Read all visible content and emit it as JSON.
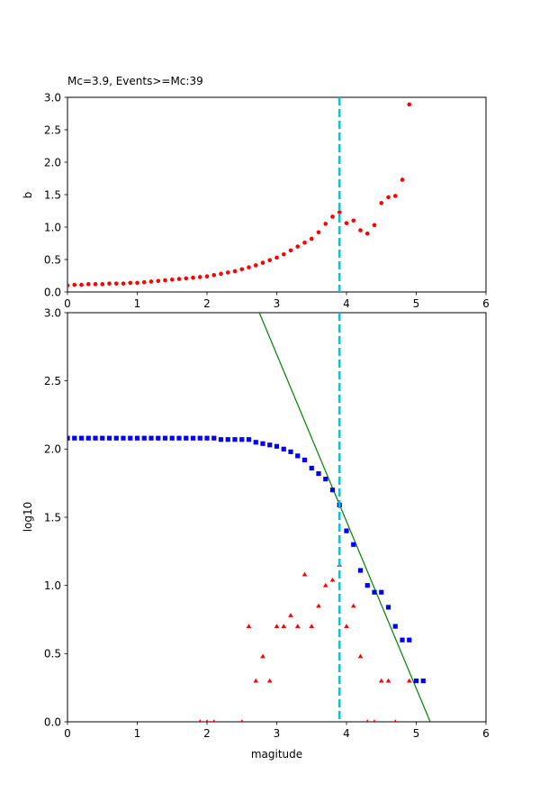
{
  "chart_data": [
    {
      "type": "scatter",
      "title": "Mc=3.9, Events>=Mc:39",
      "xlabel": "",
      "ylabel": "b",
      "xlim": [
        0,
        6
      ],
      "ylim": [
        0,
        3.0
      ],
      "xticks": [
        "0",
        "1",
        "2",
        "3",
        "4",
        "5",
        "6"
      ],
      "yticks": [
        "0.0",
        "0.5",
        "1.0",
        "1.5",
        "2.0",
        "2.5",
        "3.0"
      ],
      "grid": false,
      "vline": {
        "x": 3.9,
        "color": "#17becf",
        "style": "dashed"
      },
      "series": [
        {
          "marker": "circle",
          "color": "#ff0000",
          "x": [
            0.0,
            0.1,
            0.2,
            0.3,
            0.4,
            0.5,
            0.6,
            0.7,
            0.8,
            0.9,
            1.0,
            1.1,
            1.2,
            1.3,
            1.4,
            1.5,
            1.6,
            1.7,
            1.8,
            1.9,
            2.0,
            2.1,
            2.2,
            2.3,
            2.4,
            2.5,
            2.6,
            2.7,
            2.8,
            2.9,
            3.0,
            3.1,
            3.2,
            3.3,
            3.4,
            3.5,
            3.6,
            3.7,
            3.8,
            3.9,
            4.0,
            4.1,
            4.2,
            4.3,
            4.4,
            4.5,
            4.6,
            4.7,
            4.8,
            4.9
          ],
          "y": [
            0.1,
            0.11,
            0.11,
            0.12,
            0.12,
            0.12,
            0.13,
            0.13,
            0.13,
            0.14,
            0.14,
            0.15,
            0.16,
            0.17,
            0.18,
            0.19,
            0.2,
            0.21,
            0.22,
            0.23,
            0.24,
            0.26,
            0.28,
            0.3,
            0.32,
            0.35,
            0.38,
            0.41,
            0.45,
            0.49,
            0.53,
            0.58,
            0.64,
            0.7,
            0.76,
            0.82,
            0.92,
            1.05,
            1.16,
            1.23,
            1.06,
            1.1,
            0.95,
            0.9,
            1.03,
            1.37,
            1.46,
            1.48,
            1.73,
            2.89
          ]
        }
      ]
    },
    {
      "type": "scatter",
      "title": "",
      "xlabel": "magitude",
      "ylabel": "log10",
      "xlim": [
        0,
        6
      ],
      "ylim": [
        0,
        3.0
      ],
      "xticks": [
        "0",
        "1",
        "2",
        "3",
        "4",
        "5",
        "6"
      ],
      "yticks": [
        "0.0",
        "0.5",
        "1.0",
        "1.5",
        "2.0",
        "2.5",
        "3.0"
      ],
      "grid": false,
      "vline": {
        "x": 3.9,
        "color": "#17becf",
        "style": "dashed"
      },
      "fit_line": {
        "color": "#008000",
        "points": [
          [
            2.75,
            3.0
          ],
          [
            5.2,
            0.0
          ]
        ]
      },
      "series": [
        {
          "marker": "square",
          "color": "#0000ff",
          "x": [
            0.0,
            0.1,
            0.2,
            0.3,
            0.4,
            0.5,
            0.6,
            0.7,
            0.8,
            0.9,
            1.0,
            1.1,
            1.2,
            1.3,
            1.4,
            1.5,
            1.6,
            1.7,
            1.8,
            1.9,
            2.0,
            2.1,
            2.2,
            2.3,
            2.4,
            2.5,
            2.6,
            2.7,
            2.8,
            2.9,
            3.0,
            3.1,
            3.2,
            3.3,
            3.4,
            3.5,
            3.6,
            3.7,
            3.8,
            3.9,
            4.0,
            4.1,
            4.2,
            4.3,
            4.4,
            4.5,
            4.6,
            4.7,
            4.8,
            4.9,
            5.0,
            5.1
          ],
          "y": [
            2.08,
            2.08,
            2.08,
            2.08,
            2.08,
            2.08,
            2.08,
            2.08,
            2.08,
            2.08,
            2.08,
            2.08,
            2.08,
            2.08,
            2.08,
            2.08,
            2.08,
            2.08,
            2.08,
            2.08,
            2.08,
            2.08,
            2.07,
            2.07,
            2.07,
            2.07,
            2.07,
            2.05,
            2.04,
            2.03,
            2.02,
            2.0,
            1.98,
            1.95,
            1.92,
            1.86,
            1.82,
            1.78,
            1.7,
            1.59,
            1.4,
            1.3,
            1.11,
            1.0,
            0.95,
            0.95,
            0.84,
            0.7,
            0.6,
            0.6,
            0.3,
            0.3
          ]
        },
        {
          "marker": "triangle",
          "color": "#ff0000",
          "x": [
            1.9,
            2.0,
            2.1,
            2.5,
            2.6,
            2.7,
            2.8,
            2.9,
            3.0,
            3.1,
            3.2,
            3.3,
            3.4,
            3.5,
            3.6,
            3.7,
            3.8,
            3.9,
            4.0,
            4.1,
            4.2,
            4.3,
            4.4,
            4.5,
            4.6,
            4.7,
            4.9
          ],
          "y": [
            0.0,
            0.0,
            0.0,
            0.0,
            0.7,
            0.3,
            0.48,
            0.3,
            0.7,
            0.7,
            0.78,
            0.7,
            1.08,
            0.7,
            0.85,
            1.0,
            1.04,
            1.15,
            0.7,
            0.85,
            0.48,
            0.0,
            0.0,
            0.3,
            0.3,
            0.0,
            0.3
          ]
        }
      ]
    }
  ]
}
